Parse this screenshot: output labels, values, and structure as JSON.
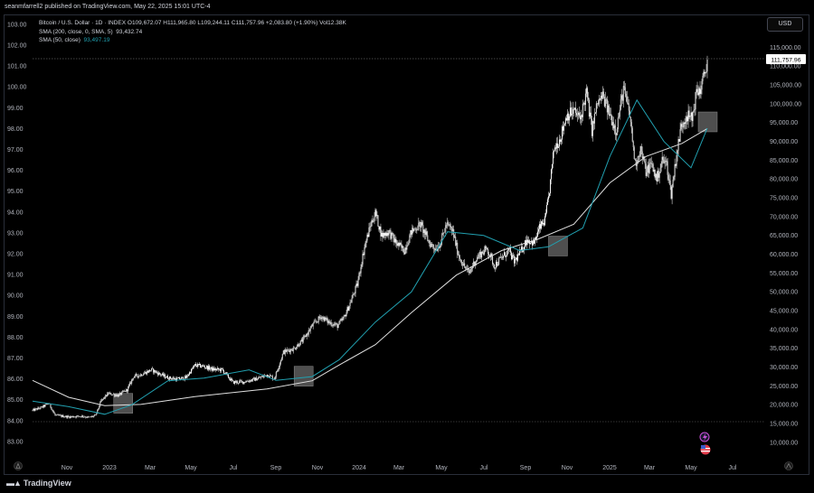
{
  "publisher_line": "seanmfarrell2 published on TradingView.com, May 22, 2025 15:01 UTC-4",
  "currency_button": "USD",
  "legend": {
    "main": "Bitcoin / U.S. Dollar · 1D · INDEX  O109,672.07  H111,965.80  L109,244.11  C111,757.96  +2,083.80 (+1.90%)  Vol12.38K",
    "sma200_label": "SMA (200, close, 0, SMA, 5)",
    "sma200_value": "93,432.74",
    "sma50_label": "SMA (50, close)",
    "sma50_value": "93,497.19"
  },
  "footer_brand": "TradingView",
  "colors": {
    "background": "#000000",
    "candle": "#ffffff",
    "sma200": "#e0e0e0",
    "sma50": "#21a0b0",
    "grid_dotted": "#888888"
  },
  "icons": {
    "top_event": "lightning-icon",
    "bottom_event": "us-flag-icon",
    "left_corner": "settings-triangle-icon",
    "right_corner": "auto-scale-icon"
  },
  "chart_data": {
    "type": "candlestick",
    "symbol": "Bitcoin / U.S. Dollar",
    "interval": "1D",
    "last_price": 111757.96,
    "last_price_label": "111,757.96",
    "left_axis": {
      "ticks": [
        "103.00",
        "102.00",
        "101.00",
        "100.00",
        "99.00",
        "98.00",
        "97.00",
        "96.00",
        "95.00",
        "94.00",
        "93.00",
        "92.00",
        "91.00",
        "90.00",
        "89.00",
        "88.00",
        "87.00",
        "86.00",
        "85.00",
        "84.00",
        "83.00"
      ]
    },
    "right_axis": {
      "ticks": [
        "115,000.00",
        "110,000.00",
        "105,000.00",
        "100,000.00",
        "95,000.00",
        "90,000.00",
        "85,000.00",
        "80,000.00",
        "75,000.00",
        "70,000.00",
        "65,000.00",
        "60,000.00",
        "55,000.00",
        "50,000.00",
        "45,000.00",
        "40,000.00",
        "35,000.00",
        "30,000.00",
        "25,000.00",
        "20,000.00",
        "15,000.00",
        "10,000.00"
      ]
    },
    "x_ticks": [
      "Nov",
      "2023",
      "Mar",
      "May",
      "Jul",
      "Sep",
      "Nov",
      "2024",
      "Mar",
      "May",
      "Jul",
      "Sep",
      "Nov",
      "2025",
      "Mar",
      "May",
      "Jul"
    ],
    "close_path": [
      [
        0,
        18500
      ],
      [
        10,
        19300
      ],
      [
        18,
        20400
      ],
      [
        25,
        17200
      ],
      [
        40,
        16800
      ],
      [
        55,
        17000
      ],
      [
        63,
        16600
      ],
      [
        70,
        17200
      ],
      [
        76,
        21000
      ],
      [
        84,
        23000
      ],
      [
        95,
        22500
      ],
      [
        105,
        24000
      ],
      [
        112,
        27500
      ],
      [
        120,
        28000
      ],
      [
        132,
        29300
      ],
      [
        140,
        28300
      ],
      [
        150,
        27200
      ],
      [
        160,
        26800
      ],
      [
        170,
        27200
      ],
      [
        180,
        30500
      ],
      [
        190,
        30200
      ],
      [
        200,
        29400
      ],
      [
        210,
        29300
      ],
      [
        222,
        26000
      ],
      [
        234,
        26100
      ],
      [
        250,
        27000
      ],
      [
        260,
        28000
      ],
      [
        268,
        27000
      ],
      [
        278,
        34000
      ],
      [
        290,
        35000
      ],
      [
        300,
        37300
      ],
      [
        310,
        41000
      ],
      [
        320,
        43500
      ],
      [
        328,
        42000
      ],
      [
        338,
        41000
      ],
      [
        345,
        43000
      ],
      [
        352,
        47000
      ],
      [
        360,
        52000
      ],
      [
        368,
        62000
      ],
      [
        375,
        68000
      ],
      [
        380,
        71000
      ],
      [
        387,
        65000
      ],
      [
        395,
        66000
      ],
      [
        403,
        63000
      ],
      [
        412,
        61000
      ],
      [
        420,
        66000
      ],
      [
        430,
        68000
      ],
      [
        440,
        63000
      ],
      [
        447,
        61500
      ],
      [
        452,
        63000
      ],
      [
        459,
        68000
      ],
      [
        466,
        66000
      ],
      [
        472,
        60000
      ],
      [
        478,
        57000
      ],
      [
        484,
        55000
      ],
      [
        490,
        58000
      ],
      [
        496,
        60000
      ],
      [
        504,
        61500
      ],
      [
        512,
        57000
      ],
      [
        520,
        59000
      ],
      [
        528,
        61000
      ],
      [
        534,
        58000
      ],
      [
        542,
        61000
      ],
      [
        548,
        64000
      ],
      [
        556,
        63000
      ],
      [
        562,
        67000
      ],
      [
        568,
        69000
      ],
      [
        572,
        75000
      ],
      [
        578,
        88000
      ],
      [
        585,
        91000
      ],
      [
        592,
        97000
      ],
      [
        600,
        98000
      ],
      [
        607,
        96000
      ],
      [
        614,
        103000
      ],
      [
        620,
        93000
      ],
      [
        626,
        100000
      ],
      [
        632,
        102000
      ],
      [
        640,
        97000
      ],
      [
        647,
        93000
      ],
      [
        655,
        104000
      ],
      [
        662,
        97000
      ],
      [
        668,
        84000
      ],
      [
        674,
        88000
      ],
      [
        680,
        82000
      ],
      [
        686,
        84000
      ],
      [
        692,
        80000
      ],
      [
        698,
        85000
      ],
      [
        703,
        84000
      ],
      [
        708,
        76000
      ],
      [
        713,
        85000
      ],
      [
        719,
        94000
      ],
      [
        725,
        97000
      ],
      [
        731,
        96000
      ],
      [
        736,
        103000
      ],
      [
        741,
        104000
      ],
      [
        746,
        109000
      ],
      [
        748,
        111758
      ]
    ],
    "sma200_path": [
      [
        0,
        26500
      ],
      [
        40,
        22000
      ],
      [
        80,
        19800
      ],
      [
        120,
        20100
      ],
      [
        180,
        22200
      ],
      [
        260,
        24200
      ],
      [
        310,
        26400
      ],
      [
        340,
        30600
      ],
      [
        380,
        36000
      ],
      [
        420,
        44500
      ],
      [
        470,
        54500
      ],
      [
        520,
        61000
      ],
      [
        560,
        64000
      ],
      [
        600,
        68000
      ],
      [
        640,
        79000
      ],
      [
        680,
        86000
      ],
      [
        720,
        89500
      ],
      [
        748,
        93433
      ]
    ],
    "sma50_path": [
      [
        0,
        21000
      ],
      [
        40,
        19500
      ],
      [
        80,
        17500
      ],
      [
        110,
        20000
      ],
      [
        150,
        26400
      ],
      [
        190,
        27100
      ],
      [
        240,
        29300
      ],
      [
        270,
        26500
      ],
      [
        310,
        27500
      ],
      [
        340,
        32000
      ],
      [
        380,
        42000
      ],
      [
        420,
        50000
      ],
      [
        460,
        66000
      ],
      [
        500,
        65000
      ],
      [
        540,
        61000
      ],
      [
        572,
        62000
      ],
      [
        610,
        67000
      ],
      [
        640,
        86000
      ],
      [
        670,
        101000
      ],
      [
        700,
        90000
      ],
      [
        730,
        83000
      ],
      [
        748,
        93497
      ]
    ],
    "highlight_boxes": [
      [
        100,
        20400
      ],
      [
        300,
        27600
      ],
      [
        582,
        62200
      ],
      [
        748,
        95200
      ]
    ]
  }
}
